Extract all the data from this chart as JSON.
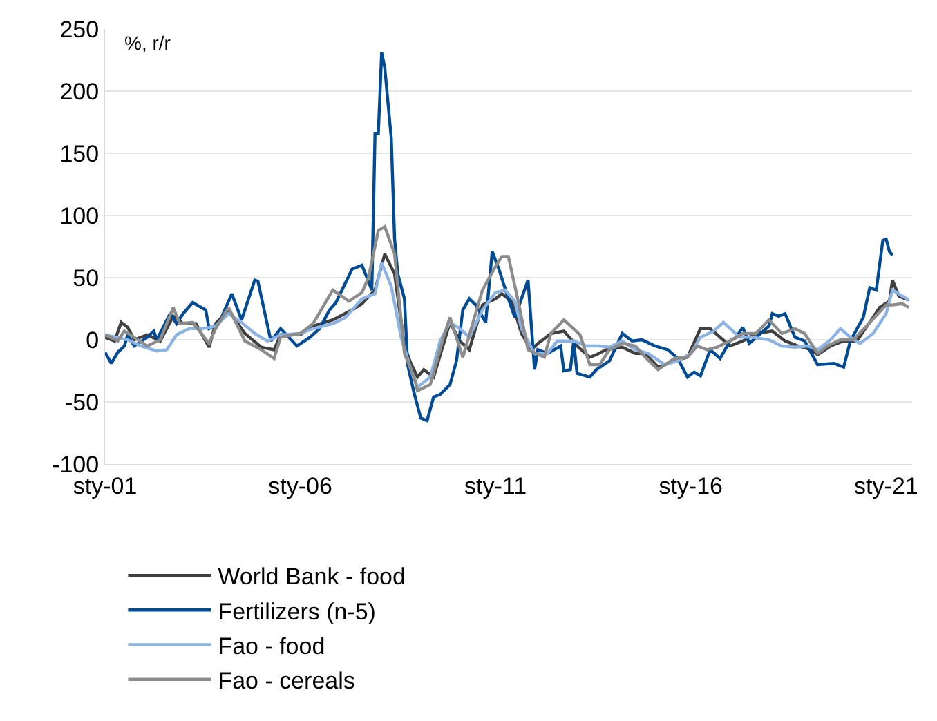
{
  "chart_data": {
    "type": "line",
    "ylabel": "%, r/r",
    "xlim": [
      "2001-01",
      "2021-09"
    ],
    "xticks": [
      {
        "value": "2001-01",
        "label": "sty-01"
      },
      {
        "value": "2006-01",
        "label": "sty-06"
      },
      {
        "value": "2011-01",
        "label": "sty-11"
      },
      {
        "value": "2016-01",
        "label": "sty-16"
      },
      {
        "value": "2021-01",
        "label": "sty-21"
      }
    ],
    "ylim": [
      -100,
      250
    ],
    "yticks": [
      -100,
      -50,
      0,
      50,
      100,
      150,
      200,
      250
    ],
    "grid": "y",
    "legend": "bottom",
    "line_style": "solid",
    "marker": "none",
    "series": [
      {
        "name": "World Bank - food",
        "color": "#404040",
        "x": [
          "2001-01",
          "2001-04",
          "2001-06",
          "2001-08",
          "2001-10",
          "2002-02",
          "2002-06",
          "2002-10",
          "2003-01",
          "2003-05",
          "2003-09",
          "2003-11",
          "2004-03",
          "2004-08",
          "2005-01",
          "2005-05",
          "2005-07",
          "2006-01",
          "2006-05",
          "2006-11",
          "2007-05",
          "2007-08",
          "2007-12",
          "2008-03",
          "2008-06",
          "2008-09",
          "2008-11",
          "2009-01",
          "2009-03",
          "2009-06",
          "2009-11",
          "2010-02",
          "2010-05",
          "2010-09",
          "2011-01",
          "2011-03",
          "2011-06",
          "2011-09",
          "2011-12",
          "2012-02",
          "2012-06",
          "2012-10",
          "2013-02",
          "2013-06",
          "2013-08",
          "2013-11",
          "2014-04",
          "2014-08",
          "2014-11",
          "2015-03",
          "2015-08",
          "2015-12",
          "2016-04",
          "2016-07",
          "2017-01",
          "2017-05",
          "2017-09",
          "2018-02",
          "2018-06",
          "2018-10",
          "2019-02",
          "2019-04",
          "2019-08",
          "2019-12",
          "2020-04",
          "2020-09",
          "2020-11",
          "2021-02",
          "2021-03",
          "2021-05",
          "2021-08"
        ],
        "values": [
          2,
          -1,
          14,
          10,
          0,
          4,
          -1,
          19,
          13,
          13,
          -6,
          13,
          24,
          5,
          -6,
          -8,
          4,
          4,
          11,
          16,
          24,
          29,
          40,
          69,
          53,
          -5,
          -19,
          -30,
          -24,
          -30,
          14,
          -1,
          -8,
          28,
          33,
          37,
          31,
          5,
          -8,
          -3,
          5,
          7,
          -5,
          -14,
          -12,
          -8,
          -6,
          -11,
          -11,
          -22,
          -17,
          -14,
          9,
          9,
          -5,
          -1,
          5,
          7,
          -1,
          -5,
          -8,
          -12,
          -5,
          -1,
          -1,
          18,
          26,
          31,
          48,
          35,
          32
        ]
      },
      {
        "name": "Fertilizers (n-5)",
        "color": "#004b93",
        "x": [
          "2001-01",
          "2001-03",
          "2001-05",
          "2001-07",
          "2001-08",
          "2001-10",
          "2002-02",
          "2002-04",
          "2002-05",
          "2002-09",
          "2002-11",
          "2003-01",
          "2003-04",
          "2003-08",
          "2003-09",
          "2003-12",
          "2004-04",
          "2004-07",
          "2004-11",
          "2004-12",
          "2005-04",
          "2005-07",
          "2005-12",
          "2006-04",
          "2006-07",
          "2006-10",
          "2006-12",
          "2007-05",
          "2007-08",
          "2007-11",
          "2007-12",
          "2008-01",
          "2008-02",
          "2008-03",
          "2008-05",
          "2008-06",
          "2008-07",
          "2008-09",
          "2008-10",
          "2008-12",
          "2009-02",
          "2009-04",
          "2009-06",
          "2009-08",
          "2009-11",
          "2010-01",
          "2010-03",
          "2010-05",
          "2010-07",
          "2010-10",
          "2010-12",
          "2011-02",
          "2011-05",
          "2011-07",
          "2011-11",
          "2012-01",
          "2012-02",
          "2012-05",
          "2012-09",
          "2012-10",
          "2012-12",
          "2013-01",
          "2013-02",
          "2013-06",
          "2013-08",
          "2013-12",
          "2014-04",
          "2014-07",
          "2014-10",
          "2015-02",
          "2015-06",
          "2015-09",
          "2015-12",
          "2016-02",
          "2016-04",
          "2016-05",
          "2016-07",
          "2016-10",
          "2017-01",
          "2017-03",
          "2017-05",
          "2017-07",
          "2018-01",
          "2018-02",
          "2018-04",
          "2018-06",
          "2018-09",
          "2018-12",
          "2019-04",
          "2019-09",
          "2019-12",
          "2020-02",
          "2020-06",
          "2020-08",
          "2020-10",
          "2020-12",
          "2021-01",
          "2021-02",
          "2021-03"
        ],
        "values": [
          -10,
          -19,
          -10,
          -5,
          4,
          -5,
          2,
          7,
          0,
          21,
          13,
          21,
          30,
          24,
          9,
          13,
          37,
          16,
          48,
          47,
          -1,
          9,
          -5,
          2,
          9,
          24,
          30,
          57,
          60,
          40,
          166,
          166,
          231,
          219,
          162,
          81,
          53,
          33,
          -20,
          -43,
          -63,
          -65,
          -46,
          -44,
          -36,
          -17,
          24,
          33,
          28,
          14,
          71,
          57,
          33,
          18,
          48,
          -24,
          -8,
          -11,
          -5,
          -25,
          -24,
          -1,
          -27,
          -30,
          -24,
          -17,
          5,
          -1,
          0,
          -5,
          -8,
          -15,
          -30,
          -26,
          -29,
          -22,
          -8,
          -15,
          -1,
          2,
          10,
          -3,
          11,
          21,
          19,
          21,
          2,
          -1,
          -20,
          -19,
          -22,
          -1,
          18,
          42,
          40,
          80,
          81,
          71,
          68
        ]
      },
      {
        "name": "Fao - food",
        "color": "#8db3e2",
        "x": [
          "2001-01",
          "2001-08",
          "2001-12",
          "2002-05",
          "2002-08",
          "2002-11",
          "2003-03",
          "2003-07",
          "2003-11",
          "2004-03",
          "2004-07",
          "2004-11",
          "2005-03",
          "2005-07",
          "2006-01",
          "2006-05",
          "2006-11",
          "2007-03",
          "2007-08",
          "2007-12",
          "2008-02",
          "2008-05",
          "2008-08",
          "2008-11",
          "2009-01",
          "2009-05",
          "2009-08",
          "2009-11",
          "2010-02",
          "2010-05",
          "2010-09",
          "2011-01",
          "2011-04",
          "2011-07",
          "2011-09",
          "2012-01",
          "2012-05",
          "2012-08",
          "2013-01",
          "2013-05",
          "2013-09",
          "2013-12",
          "2014-04",
          "2014-08",
          "2014-12",
          "2015-05",
          "2015-09",
          "2016-01",
          "2016-04",
          "2016-08",
          "2016-11",
          "2017-04",
          "2017-08",
          "2018-01",
          "2018-05",
          "2018-09",
          "2019-01",
          "2019-04",
          "2019-08",
          "2019-11",
          "2020-02",
          "2020-05",
          "2020-09",
          "2021-01",
          "2021-03",
          "2021-08"
        ],
        "values": [
          4,
          0,
          -5,
          -9,
          -8,
          4,
          9,
          9,
          11,
          21,
          14,
          5,
          -1,
          4,
          5,
          9,
          13,
          18,
          33,
          37,
          62,
          43,
          2,
          -24,
          -38,
          -30,
          -1,
          14,
          9,
          2,
          24,
          38,
          40,
          31,
          9,
          -11,
          -11,
          -1,
          -1,
          -5,
          -5,
          -6,
          -1,
          -8,
          -11,
          -20,
          -17,
          -11,
          2,
          7,
          14,
          2,
          2,
          0,
          -5,
          -6,
          -5,
          -8,
          0,
          9,
          2,
          -3,
          5,
          21,
          40,
          32
        ]
      },
      {
        "name": "Fao - cereals",
        "color": "#8c8c8c",
        "x": [
          "2001-01",
          "2001-05",
          "2001-07",
          "2002-02",
          "2002-06",
          "2002-10",
          "2002-12",
          "2003-04",
          "2003-09",
          "2003-11",
          "2004-03",
          "2004-08",
          "2005-01",
          "2005-05",
          "2005-07",
          "2006-01",
          "2006-05",
          "2006-11",
          "2007-04",
          "2007-08",
          "2007-10",
          "2008-01",
          "2008-03",
          "2008-06",
          "2008-09",
          "2008-12",
          "2009-01",
          "2009-05",
          "2009-09",
          "2009-11",
          "2010-03",
          "2010-09",
          "2011-01",
          "2011-03",
          "2011-05",
          "2011-08",
          "2011-11",
          "2012-04",
          "2012-06",
          "2012-10",
          "2013-03",
          "2013-06",
          "2013-09",
          "2013-12",
          "2014-04",
          "2014-08",
          "2014-11",
          "2015-03",
          "2015-08",
          "2015-12",
          "2016-03",
          "2016-06",
          "2016-09",
          "2017-01",
          "2017-05",
          "2017-09",
          "2018-01",
          "2018-05",
          "2018-09",
          "2018-12",
          "2019-04",
          "2019-07",
          "2019-11",
          "2020-03",
          "2020-07",
          "2021-01",
          "2021-03",
          "2021-06",
          "2021-08"
        ],
        "values": [
          4,
          -1,
          7,
          -5,
          0,
          26,
          13,
          14,
          -3,
          9,
          26,
          -1,
          -8,
          -15,
          2,
          5,
          13,
          40,
          31,
          38,
          50,
          88,
          91,
          69,
          -11,
          -30,
          -41,
          -36,
          2,
          18,
          -14,
          40,
          59,
          67,
          67,
          31,
          -8,
          -14,
          5,
          16,
          4,
          -20,
          -20,
          -8,
          -3,
          -5,
          -14,
          -24,
          -15,
          -14,
          -5,
          -8,
          -6,
          -1,
          5,
          5,
          16,
          5,
          9,
          5,
          -11,
          -5,
          0,
          0,
          11,
          28,
          28,
          29,
          26
        ]
      }
    ]
  }
}
